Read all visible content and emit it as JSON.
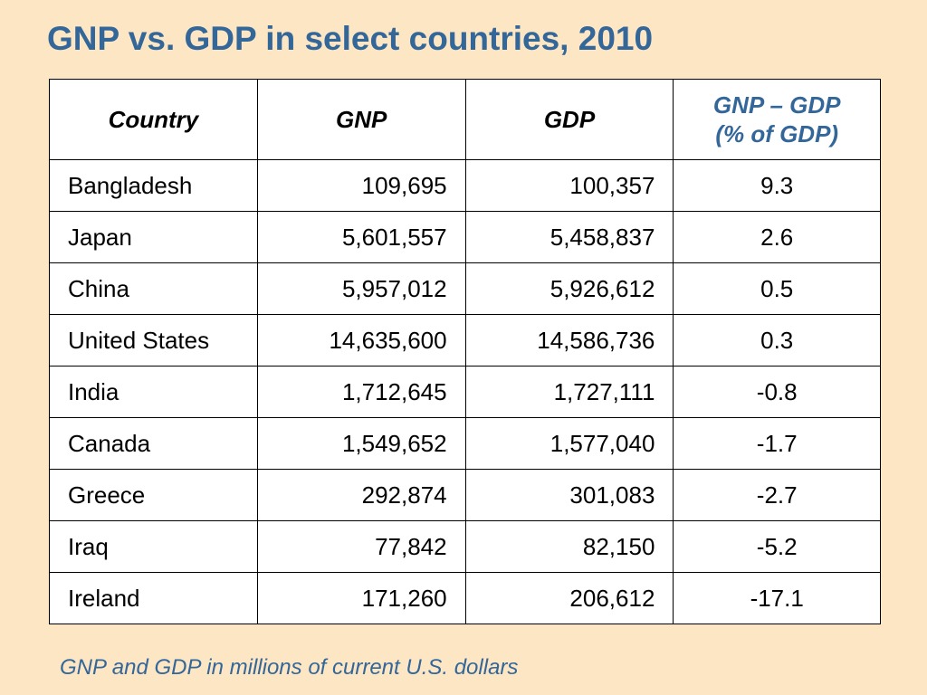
{
  "title": "GNP vs. GDP in select countries, 2010",
  "colors": {
    "background": "#fde6c4",
    "title": "#336699",
    "accent_header": "#336699",
    "table_bg": "#ffffff"
  },
  "table": {
    "headers": {
      "country": "Country",
      "gnp": "GNP",
      "gdp": "GDP",
      "diff_line1": "GNP – GDP",
      "diff_line2": "(% of GDP)"
    },
    "rows": [
      {
        "country": "Bangladesh",
        "gnp": "109,695",
        "gdp": "100,357",
        "diff": "9.3"
      },
      {
        "country": "Japan",
        "gnp": "5,601,557",
        "gdp": "5,458,837",
        "diff": "2.6"
      },
      {
        "country": "China",
        "gnp": "5,957,012",
        "gdp": "5,926,612",
        "diff": "0.5"
      },
      {
        "country": "United States",
        "gnp": "14,635,600",
        "gdp": "14,586,736",
        "diff": "0.3"
      },
      {
        "country": "India",
        "gnp": "1,712,645",
        "gdp": "1,727,111",
        "diff": "-0.8"
      },
      {
        "country": "Canada",
        "gnp": "1,549,652",
        "gdp": "1,577,040",
        "diff": "-1.7"
      },
      {
        "country": "Greece",
        "gnp": "292,874",
        "gdp": "301,083",
        "diff": "-2.7"
      },
      {
        "country": "Iraq",
        "gnp": "77,842",
        "gdp": "82,150",
        "diff": "-5.2"
      },
      {
        "country": "Ireland",
        "gnp": "171,260",
        "gdp": "206,612",
        "diff": "-17.1"
      }
    ]
  },
  "footnote": "GNP and GDP in millions of current U.S. dollars"
}
